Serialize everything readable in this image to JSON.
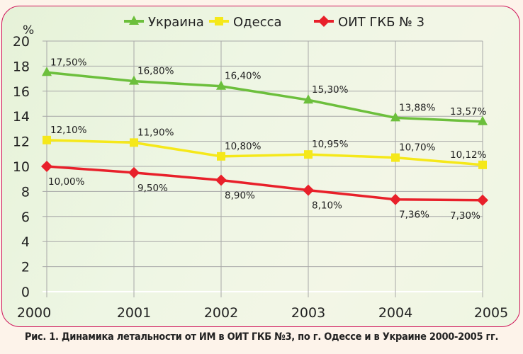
{
  "chart_data": {
    "type": "line",
    "title": "",
    "ylabel": "%",
    "xlabel": "",
    "ylim": [
      0,
      20
    ],
    "yticks": [
      "0",
      "2",
      "4",
      "6",
      "8",
      "10",
      "12",
      "14",
      "16",
      "18",
      "20"
    ],
    "categories": [
      "2000",
      "2001",
      "2002",
      "2003",
      "2004",
      "2005"
    ],
    "grid": true,
    "legend": "top",
    "series": [
      {
        "name": "Украина",
        "color": "#6cbf3c",
        "marker": "triangle",
        "values": [
          17.5,
          16.8,
          16.4,
          15.3,
          13.88,
          13.57
        ],
        "labels": [
          "17,50%",
          "16,80%",
          "16,40%",
          "15,30%",
          "13,88%",
          "13,57%"
        ]
      },
      {
        "name": "Одесса",
        "color": "#f5e81a",
        "marker": "square",
        "values": [
          12.1,
          11.9,
          10.8,
          10.95,
          10.7,
          10.12
        ],
        "labels": [
          "12,10%",
          "11,90%",
          "10,80%",
          "10,95%",
          "10,70%",
          "10,12%"
        ]
      },
      {
        "name": "ОИТ ГКБ № 3",
        "color": "#e8202a",
        "marker": "diamond",
        "values": [
          10.0,
          9.5,
          8.9,
          8.1,
          7.36,
          7.3
        ],
        "labels": [
          "10,00%",
          "9,50%",
          "8,90%",
          "8,10%",
          "7,36%",
          "7,30%"
        ]
      }
    ]
  },
  "caption": "Рис. 1. Динамика летальности от ИМ в ОИТ ГКБ №3, по г. Одессе и в Украине 2000-2005 гг."
}
